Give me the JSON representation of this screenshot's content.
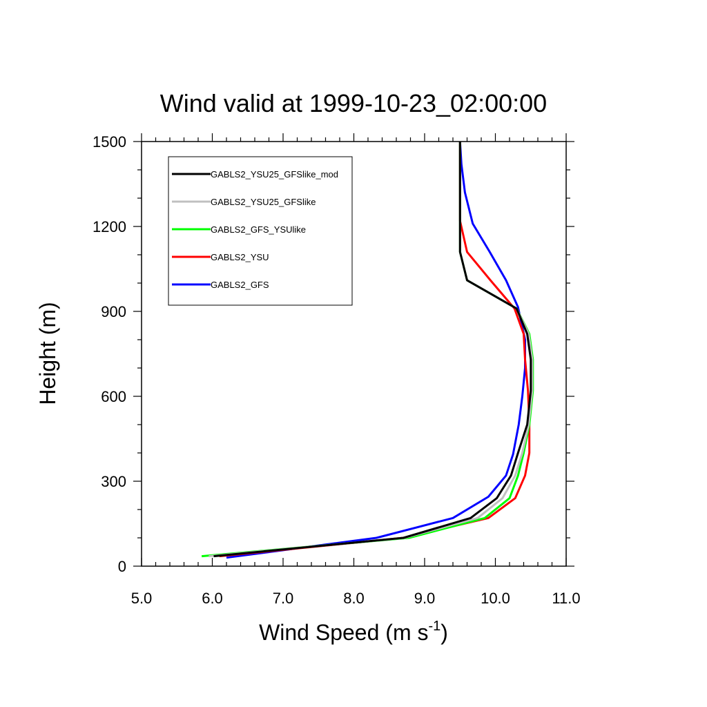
{
  "chart_data": {
    "type": "line",
    "title": "Wind valid at 1999-10-23_02:00:00",
    "xlabel": "Wind Speed (m s",
    "xlabel_sup": "-1",
    "xlabel_end": ")",
    "ylabel": "Height (m)",
    "xlim": [
      5.0,
      11.0
    ],
    "ylim": [
      0,
      1500
    ],
    "xticks": [
      "5.0",
      "6.0",
      "7.0",
      "8.0",
      "9.0",
      "10.0",
      "11.0"
    ],
    "xtick_values": [
      5.0,
      6.0,
      7.0,
      8.0,
      9.0,
      10.0,
      11.0
    ],
    "yticks": [
      "0",
      "300",
      "600",
      "900",
      "1200",
      "1500"
    ],
    "ytick_values": [
      0,
      300,
      600,
      900,
      1200,
      1500
    ],
    "grid": false,
    "legend_position": "top-left",
    "series": [
      {
        "name": "GABLS2_YSU25_GFSlike_mod",
        "color": "#000000",
        "x": [
          6.02,
          8.7,
          9.65,
          10.02,
          10.22,
          10.32,
          10.45,
          10.5,
          10.5,
          10.45,
          10.3,
          9.6,
          9.5,
          9.5,
          9.5
        ],
        "y": [
          35,
          100,
          170,
          240,
          320,
          400,
          500,
          620,
          730,
          820,
          910,
          1010,
          1110,
          1220,
          1500
        ]
      },
      {
        "name": "GABLS2_YSU25_GFSlike",
        "color": "#c0c0c0",
        "x": [
          5.95,
          8.72,
          9.75,
          10.1,
          10.28,
          10.38,
          10.47,
          10.52,
          10.52,
          10.47,
          10.3,
          9.6,
          9.5,
          9.5,
          9.5
        ],
        "y": [
          35,
          100,
          170,
          240,
          320,
          400,
          500,
          620,
          730,
          820,
          910,
          1010,
          1110,
          1220,
          1500
        ]
      },
      {
        "name": "GABLS2_GFS_YSUlike",
        "color": "#00ff00",
        "x": [
          5.85,
          8.78,
          9.85,
          10.2,
          10.32,
          10.4,
          10.48,
          10.53,
          10.53,
          10.48,
          10.3,
          9.6,
          9.5,
          9.5,
          9.5
        ],
        "y": [
          35,
          100,
          170,
          240,
          320,
          400,
          500,
          620,
          730,
          820,
          910,
          1010,
          1110,
          1220,
          1500
        ]
      },
      {
        "name": "GABLS2_YSU",
        "color": "#ff0000",
        "x": [
          6.1,
          8.7,
          9.9,
          10.28,
          10.42,
          10.48,
          10.48,
          10.46,
          10.42,
          10.4,
          10.27,
          9.93,
          9.6,
          9.5,
          9.5
        ],
        "y": [
          35,
          100,
          170,
          240,
          320,
          400,
          500,
          620,
          730,
          820,
          910,
          1010,
          1110,
          1220,
          1500
        ]
      },
      {
        "name": "GABLS2_GFS",
        "color": "#0000ff",
        "x": [
          6.2,
          8.32,
          9.4,
          9.9,
          10.15,
          10.25,
          10.33,
          10.38,
          10.42,
          10.42,
          10.32,
          10.15,
          9.92,
          9.68,
          9.57,
          9.52,
          9.5
        ],
        "y": [
          30,
          100,
          170,
          245,
          320,
          395,
          500,
          600,
          700,
          800,
          915,
          1010,
          1110,
          1210,
          1320,
          1420,
          1500
        ]
      }
    ]
  }
}
